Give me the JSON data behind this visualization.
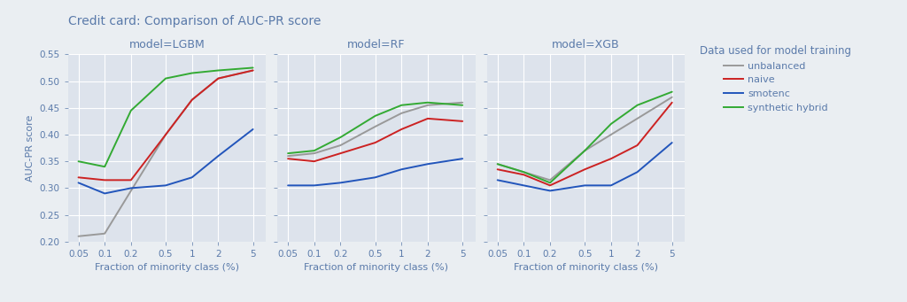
{
  "title": "Credit card: Comparison of AUC-PR score",
  "title_color": "#5a7aaa",
  "x_values": [
    0.05,
    0.1,
    0.2,
    0.5,
    1,
    2,
    5
  ],
  "x_label": "Fraction of minority class (%)",
  "y_label": "AUC-PR score",
  "y_lim": [
    0.2,
    0.55
  ],
  "y_ticks": [
    0.2,
    0.25,
    0.3,
    0.35,
    0.4,
    0.45,
    0.5,
    0.55
  ],
  "legend_title": "Data used for model training",
  "series": [
    "unbalanced",
    "naive",
    "smotenc",
    "synthetic hybrid"
  ],
  "colors": [
    "#999999",
    "#cc2222",
    "#2255bb",
    "#33aa33"
  ],
  "panels": [
    {
      "title": "model=LGBM",
      "data": {
        "unbalanced": [
          0.21,
          0.215,
          0.295,
          0.4,
          0.465,
          0.505,
          0.52
        ],
        "naive": [
          0.32,
          0.315,
          0.315,
          0.4,
          0.465,
          0.505,
          0.52
        ],
        "smotenc": [
          0.31,
          0.29,
          0.3,
          0.305,
          0.32,
          0.36,
          0.41
        ],
        "synthetic hybrid": [
          0.35,
          0.34,
          0.445,
          0.505,
          0.515,
          0.52,
          0.525
        ]
      }
    },
    {
      "title": "model=RF",
      "data": {
        "unbalanced": [
          0.36,
          0.365,
          0.38,
          0.415,
          0.44,
          0.455,
          0.46
        ],
        "naive": [
          0.355,
          0.35,
          0.365,
          0.385,
          0.41,
          0.43,
          0.425
        ],
        "smotenc": [
          0.305,
          0.305,
          0.31,
          0.32,
          0.335,
          0.345,
          0.355
        ],
        "synthetic hybrid": [
          0.365,
          0.37,
          0.395,
          0.435,
          0.455,
          0.46,
          0.455
        ]
      }
    },
    {
      "title": "model=XGB",
      "data": {
        "unbalanced": [
          0.345,
          0.33,
          0.315,
          0.37,
          0.4,
          0.43,
          0.47
        ],
        "naive": [
          0.335,
          0.325,
          0.305,
          0.335,
          0.355,
          0.38,
          0.46
        ],
        "smotenc": [
          0.315,
          0.305,
          0.295,
          0.305,
          0.305,
          0.33,
          0.385
        ],
        "synthetic hybrid": [
          0.345,
          0.33,
          0.31,
          0.37,
          0.42,
          0.455,
          0.48
        ]
      }
    }
  ],
  "bg_color": "#eaeef2",
  "panel_bg": "#dde3ec",
  "grid_color": "#ffffff",
  "tick_color": "#5a7aaa",
  "label_color": "#5a7aaa",
  "title_fontsize": 10,
  "panel_title_fontsize": 9,
  "axis_label_fontsize": 8,
  "tick_fontsize": 7.5,
  "legend_title_fontsize": 8.5,
  "legend_fontsize": 8
}
